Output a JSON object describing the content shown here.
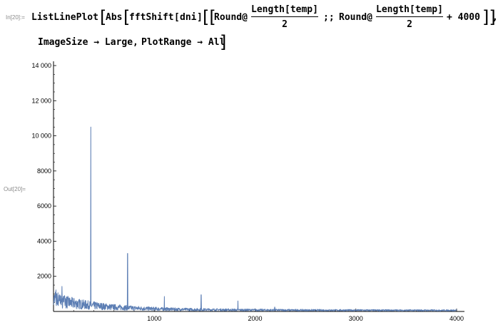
{
  "cell": {
    "in_label": "In[20]:=",
    "out_label": "Out[20]=",
    "line1": {
      "head": "ListLinePlot",
      "abs": "Abs",
      "fft": "fftShift",
      "arg": "dni",
      "round1": "Round@",
      "frac1_num": "Length[temp]",
      "frac1_den": "2",
      "span": ";;",
      "round2": "Round@",
      "frac2_num": "Length[temp]",
      "frac2_den": "2",
      "plus": "+ 4000",
      "close": "]],"
    },
    "line2": {
      "opt1": "ImageSize → Large,",
      "opt2": "PlotRange → All"
    }
  },
  "chart_data": {
    "type": "line",
    "title": "",
    "xlabel": "",
    "ylabel": "",
    "xlim": [
      0,
      4000
    ],
    "ylim": [
      0,
      14000
    ],
    "xticks": [
      1000,
      2000,
      3000,
      4000
    ],
    "yticks": [
      2000,
      4000,
      6000,
      8000,
      10000,
      12000,
      14000
    ],
    "xtick_labels": [
      "1000",
      "2000",
      "3000",
      "4000"
    ],
    "ytick_labels": [
      "2000",
      "4000",
      "6000",
      "8000",
      "10 000",
      "12 000",
      "14 000"
    ],
    "line_color": "#5c7eb4",
    "grid": false,
    "peaks": [
      {
        "x": 370,
        "y": 10500
      },
      {
        "x": 735,
        "y": 3300
      },
      {
        "x": 1100,
        "y": 850
      },
      {
        "x": 1465,
        "y": 950
      },
      {
        "x": 1830,
        "y": 600
      },
      {
        "x": 2195,
        "y": 250
      }
    ],
    "baseline_noise": "decaying noise ≈ 1000 at x=0 to ≈ 50 at x=4000"
  }
}
